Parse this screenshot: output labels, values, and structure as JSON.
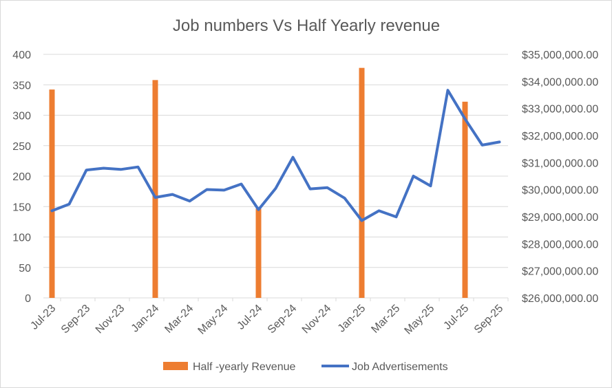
{
  "chart_data": {
    "type": "bar+line",
    "title": "Job numbers Vs Half Yearly revenue",
    "x_labels": [
      "Jul-23",
      "Sep-23",
      "Nov-23",
      "Jan-24",
      "Mar-24",
      "May-24",
      "Jul-24",
      "Sep-24",
      "Nov-24",
      "Jan-25",
      "Mar-25",
      "May-25",
      "Jul-25",
      "Sep-25"
    ],
    "left_axis": {
      "min": 0,
      "max": 400,
      "step": 50,
      "ticks": [
        "0",
        "50",
        "100",
        "150",
        "200",
        "250",
        "300",
        "350",
        "400"
      ]
    },
    "right_axis": {
      "min": 26000000,
      "max": 35000000,
      "step": 1000000,
      "ticks": [
        "$26,000,000.00",
        "$27,000,000.00",
        "$28,000,000.00",
        "$29,000,000.00",
        "$30,000,000.00",
        "$31,000,000.00",
        "$32,000,000.00",
        "$33,000,000.00",
        "$34,000,000.00",
        "$35,000,000.00"
      ]
    },
    "series": [
      {
        "name": "Half -yearly Revenue",
        "type": "bar",
        "axis": "right",
        "color": "#ED7D31",
        "points": [
          {
            "month_index": 0,
            "value": 33700000
          },
          {
            "month_index": 6,
            "value": 34050000
          },
          {
            "month_index": 12,
            "value": 29300000
          },
          {
            "month_index": 18,
            "value": 34500000
          },
          {
            "month_index": 24,
            "value": 33250000
          }
        ]
      },
      {
        "name": "Job Advertisements",
        "type": "line",
        "axis": "left",
        "color": "#4472C4",
        "values": [
          143,
          154,
          210,
          213,
          211,
          215,
          165,
          170,
          159,
          178,
          177,
          187,
          145,
          180,
          231,
          179,
          181,
          164,
          127,
          143,
          133,
          200,
          184,
          341,
          294,
          251,
          256
        ]
      }
    ],
    "legend_position": "bottom"
  }
}
